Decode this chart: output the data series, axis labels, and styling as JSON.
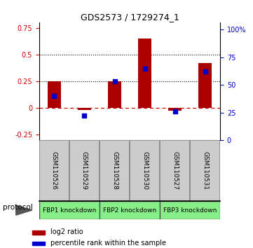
{
  "title": "GDS2573 / 1729274_1",
  "samples": [
    "GSM110526",
    "GSM110529",
    "GSM110528",
    "GSM110530",
    "GSM110527",
    "GSM110531"
  ],
  "log2_ratio": [
    0.25,
    -0.02,
    0.25,
    0.65,
    -0.025,
    0.42
  ],
  "percentile_rank": [
    0.4,
    0.22,
    0.53,
    0.65,
    0.26,
    0.62
  ],
  "protocols": [
    {
      "label": "FBP1 knockdown",
      "start": 0,
      "end": 2
    },
    {
      "label": "FBP2 knockdown",
      "start": 2,
      "end": 4
    },
    {
      "label": "FBP3 knockdown",
      "start": 4,
      "end": 6
    }
  ],
  "ylim_left": [
    -0.3,
    0.8
  ],
  "ylim_right": [
    0,
    1.067
  ],
  "yticks_left": [
    -0.25,
    0.0,
    0.25,
    0.5,
    0.75
  ],
  "ytick_labels_left": [
    "-0.25",
    "0",
    "0.25",
    "0.5",
    "0.75"
  ],
  "yticks_right": [
    0.0,
    0.25,
    0.5,
    0.75,
    1.0
  ],
  "ytick_labels_right": [
    "0",
    "25",
    "50",
    "75",
    "100%"
  ],
  "hline_dashed": 0.0,
  "hlines_dotted": [
    0.25,
    0.5
  ],
  "bar_color": "#aa0000",
  "dot_color": "#0000cc",
  "legend_bar_label": "log2 ratio",
  "legend_dot_label": "percentile rank within the sample",
  "protocol_label": "protocol",
  "bg_sample": "#cccccc",
  "bg_protocol": "#88ee88",
  "sample_box_border": "#888888",
  "protocol_border": "#555555"
}
